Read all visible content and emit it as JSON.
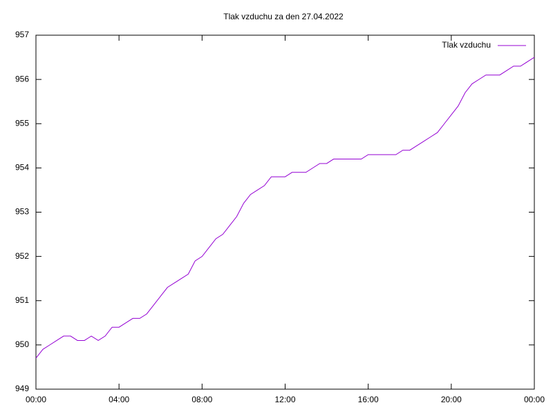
{
  "chart_data": {
    "type": "line",
    "title": "Tlak vzduchu za den 27.04.2022",
    "x": [
      0,
      20,
      40,
      60,
      80,
      100,
      120,
      140,
      160,
      180,
      200,
      220,
      240,
      260,
      280,
      300,
      320,
      340,
      360,
      380,
      400,
      420,
      440,
      460,
      480,
      500,
      520,
      540,
      560,
      580,
      600,
      620,
      640,
      660,
      680,
      700,
      720,
      740,
      760,
      780,
      800,
      820,
      840,
      860,
      880,
      900,
      920,
      940,
      960,
      980,
      1000,
      1020,
      1040,
      1060,
      1080,
      1100,
      1120,
      1140,
      1160,
      1180,
      1200,
      1220,
      1240,
      1260,
      1280,
      1300,
      1320,
      1340,
      1360,
      1380,
      1400,
      1420,
      1440
    ],
    "series": [
      {
        "name": "Tlak vzduchu",
        "color": "#9400d3",
        "values": [
          949.7,
          949.9,
          950.0,
          950.1,
          950.2,
          950.2,
          950.1,
          950.1,
          950.2,
          950.1,
          950.2,
          950.4,
          950.4,
          950.5,
          950.6,
          950.6,
          950.7,
          950.9,
          951.1,
          951.3,
          951.4,
          951.5,
          951.6,
          951.9,
          952.0,
          952.2,
          952.4,
          952.5,
          952.7,
          952.9,
          953.2,
          953.4,
          953.5,
          953.6,
          953.8,
          953.8,
          953.8,
          953.9,
          953.9,
          953.9,
          954.0,
          954.1,
          954.1,
          954.2,
          954.2,
          954.2,
          954.2,
          954.2,
          954.3,
          954.3,
          954.3,
          954.3,
          954.3,
          954.4,
          954.4,
          954.5,
          954.6,
          954.7,
          954.8,
          955.0,
          955.2,
          955.4,
          955.7,
          955.9,
          956.0,
          956.1,
          956.1,
          956.1,
          956.2,
          956.3,
          956.3,
          956.4,
          956.5
        ]
      }
    ],
    "xlim": [
      0,
      1440
    ],
    "xticks": [
      {
        "value": 0,
        "label": "00:00"
      },
      {
        "value": 240,
        "label": "04:00"
      },
      {
        "value": 480,
        "label": "08:00"
      },
      {
        "value": 720,
        "label": "12:00"
      },
      {
        "value": 960,
        "label": "16:00"
      },
      {
        "value": 1200,
        "label": "20:00"
      },
      {
        "value": 1440,
        "label": "00:00"
      }
    ],
    "ylim": [
      949,
      957
    ],
    "yticks": [
      949,
      950,
      951,
      952,
      953,
      954,
      955,
      956,
      957
    ],
    "legend": "top-right",
    "grid": false
  }
}
